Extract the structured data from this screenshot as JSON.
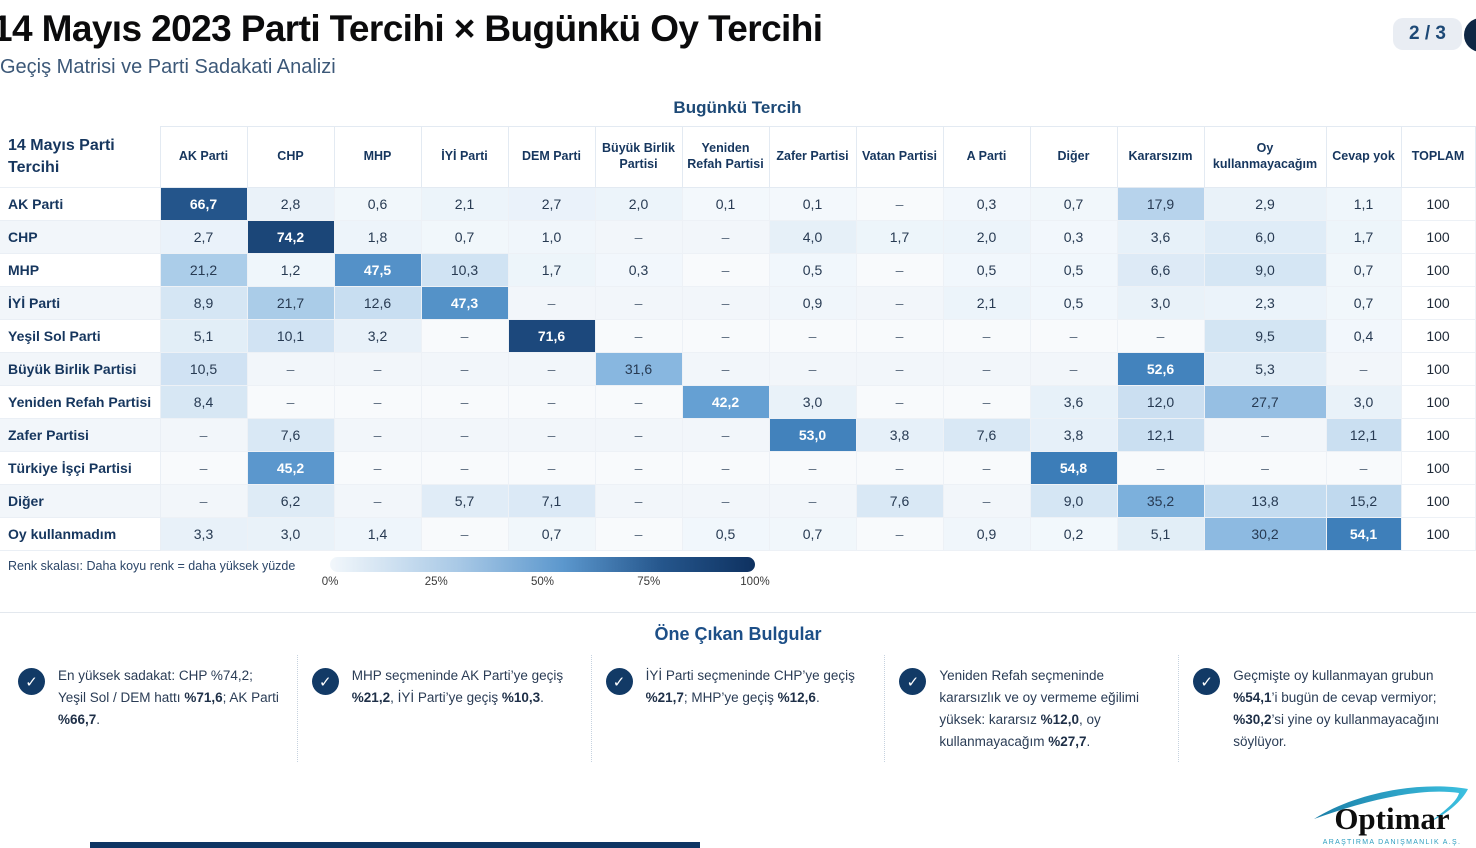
{
  "header": {
    "title": "14 Mayıs 2023 Parti Tercihi × Bugünkü Oy Tercihi",
    "subtitle": "Geçiş Matrisi ve Parti Sadakati Analizi",
    "page_indicator": "2 / 3"
  },
  "matrix": {
    "column_group_label": "Bugünkü Tercih",
    "row_group_label": "14 Mayıs Parti Tercihi",
    "columns": [
      "AK Parti",
      "CHP",
      "MHP",
      "İYİ Parti",
      "DEM Parti",
      "Büyük Birlik Partisi",
      "Yeniden Refah Partisi",
      "Zafer Partisi",
      "Vatan Partisi",
      "A Parti",
      "Diğer",
      "Kararsızım",
      "Oy kullanmayacağım",
      "Cevap yok",
      "TOPLAM"
    ],
    "empty_cell_symbol": "–"
  },
  "chart_data": {
    "type": "heatmap",
    "title": "14 Mayıs 2023 Parti Tercihi × Bugünkü Oy Tercihi",
    "xlabel": "Bugünkü Tercih",
    "ylabel": "14 Mayıs Parti Tercihi",
    "value_unit": "%",
    "columns": [
      "AK Parti",
      "CHP",
      "MHP",
      "İYİ Parti",
      "DEM Parti",
      "Büyük Birlik Partisi",
      "Yeniden Refah Partisi",
      "Zafer Partisi",
      "Vatan Partisi",
      "A Parti",
      "Diğer",
      "Kararsızım",
      "Oy kullanmayacağım",
      "Cevap yok",
      "TOPLAM"
    ],
    "rows": [
      "AK Parti",
      "CHP",
      "MHP",
      "İYİ Parti",
      "Yeşil Sol Parti",
      "Büyük Birlik Partisi",
      "Yeniden Refah Partisi",
      "Zafer Partisi",
      "Türkiye İşçi Partisi",
      "Diğer",
      "Oy kullanmadım"
    ],
    "values": [
      [
        66.7,
        2.8,
        0.6,
        2.1,
        2.7,
        2.0,
        0.1,
        0.1,
        null,
        0.3,
        0.7,
        17.9,
        2.9,
        1.1,
        100
      ],
      [
        2.7,
        74.2,
        1.8,
        0.7,
        1.0,
        null,
        null,
        4.0,
        1.7,
        2.0,
        0.3,
        3.6,
        6.0,
        1.7,
        100
      ],
      [
        21.2,
        1.2,
        47.5,
        10.3,
        1.7,
        0.3,
        null,
        0.5,
        null,
        0.5,
        0.5,
        6.6,
        9.0,
        0.7,
        100
      ],
      [
        8.9,
        21.7,
        12.6,
        47.3,
        null,
        null,
        null,
        0.9,
        null,
        2.1,
        0.5,
        3.0,
        2.3,
        0.7,
        100
      ],
      [
        5.1,
        10.1,
        3.2,
        null,
        71.6,
        null,
        null,
        null,
        null,
        null,
        null,
        null,
        9.5,
        0.4,
        100
      ],
      [
        10.5,
        null,
        null,
        null,
        null,
        31.6,
        null,
        null,
        null,
        null,
        null,
        52.6,
        5.3,
        null,
        100
      ],
      [
        8.4,
        null,
        null,
        null,
        null,
        null,
        42.2,
        3.0,
        null,
        null,
        3.6,
        12.0,
        27.7,
        3.0,
        100
      ],
      [
        null,
        7.6,
        null,
        null,
        null,
        null,
        null,
        53.0,
        3.8,
        7.6,
        3.8,
        12.1,
        null,
        12.1,
        100
      ],
      [
        null,
        45.2,
        null,
        null,
        null,
        null,
        null,
        null,
        null,
        null,
        54.8,
        null,
        null,
        null,
        100
      ],
      [
        null,
        6.2,
        null,
        5.7,
        7.1,
        null,
        null,
        null,
        7.6,
        null,
        9.0,
        35.2,
        13.8,
        15.2,
        100
      ],
      [
        3.3,
        3.0,
        1.4,
        null,
        0.7,
        null,
        0.5,
        0.7,
        null,
        0.9,
        0.2,
        5.1,
        30.2,
        54.1,
        100
      ]
    ]
  },
  "legend": {
    "label": "Renk skalası: Daha koyu renk = daha yüksek yüzde",
    "ticks": [
      "0%",
      "25%",
      "50%",
      "75%",
      "100%"
    ]
  },
  "findings": {
    "heading": "Öne Çıkan Bulgular",
    "items": [
      {
        "segments": [
          {
            "t": "En yüksek sadakat: CHP %74,2; Yeşil Sol / DEM hattı ",
            "b": false
          },
          {
            "t": "%71,6",
            "b": true
          },
          {
            "t": "; AK Parti ",
            "b": false
          },
          {
            "t": "%66,7",
            "b": true
          },
          {
            "t": ".",
            "b": false
          }
        ]
      },
      {
        "segments": [
          {
            "t": "MHP seçmeninde AK Parti’ye geçiş ",
            "b": false
          },
          {
            "t": "%21,2",
            "b": true
          },
          {
            "t": ", İYİ Parti’ye geçiş ",
            "b": false
          },
          {
            "t": "%10,3",
            "b": true
          },
          {
            "t": ".",
            "b": false
          }
        ]
      },
      {
        "segments": [
          {
            "t": "İYİ Parti seçmeninde CHP’ye geçiş ",
            "b": false
          },
          {
            "t": "%21,7",
            "b": true
          },
          {
            "t": "; MHP’ye geçiş ",
            "b": false
          },
          {
            "t": "%12,6",
            "b": true
          },
          {
            "t": ".",
            "b": false
          }
        ]
      },
      {
        "segments": [
          {
            "t": "Yeniden Refah seçmeninde kararsızlık ve oy vermeme eğilimi yüksek: kararsız ",
            "b": false
          },
          {
            "t": "%12,0",
            "b": true
          },
          {
            "t": ", oy kullanmayacağım ",
            "b": false
          },
          {
            "t": "%27,7",
            "b": true
          },
          {
            "t": ".",
            "b": false
          }
        ]
      },
      {
        "segments": [
          {
            "t": "Geçmişte oy kullanmayan grubun ",
            "b": false
          },
          {
            "t": "%54,1",
            "b": true
          },
          {
            "t": "’i bugün de cevap vermiyor; ",
            "b": false
          },
          {
            "t": "%30,2",
            "b": true
          },
          {
            "t": "’si yine oy kullanmayacağını söylüyor.",
            "b": false
          }
        ]
      }
    ]
  },
  "footer": {
    "brand": "Optimar",
    "brand_sub": "ARAŞTIRMA DANIŞMANLIK A.Ş."
  },
  "colors": {
    "accent_navy": "#123a66",
    "heading_blue": "#1d4f87",
    "brand_teal": "#2e9fc0",
    "heat_scale": [
      {
        "at": 0,
        "color": "#f3f8fc"
      },
      {
        "at": 40,
        "color": "#6ca6d8"
      },
      {
        "at": 55,
        "color": "#3b7cb8"
      },
      {
        "at": 70,
        "color": "#1d4a7e"
      },
      {
        "at": 100,
        "color": "#0c2c55"
      }
    ],
    "white_text_threshold": 40
  }
}
